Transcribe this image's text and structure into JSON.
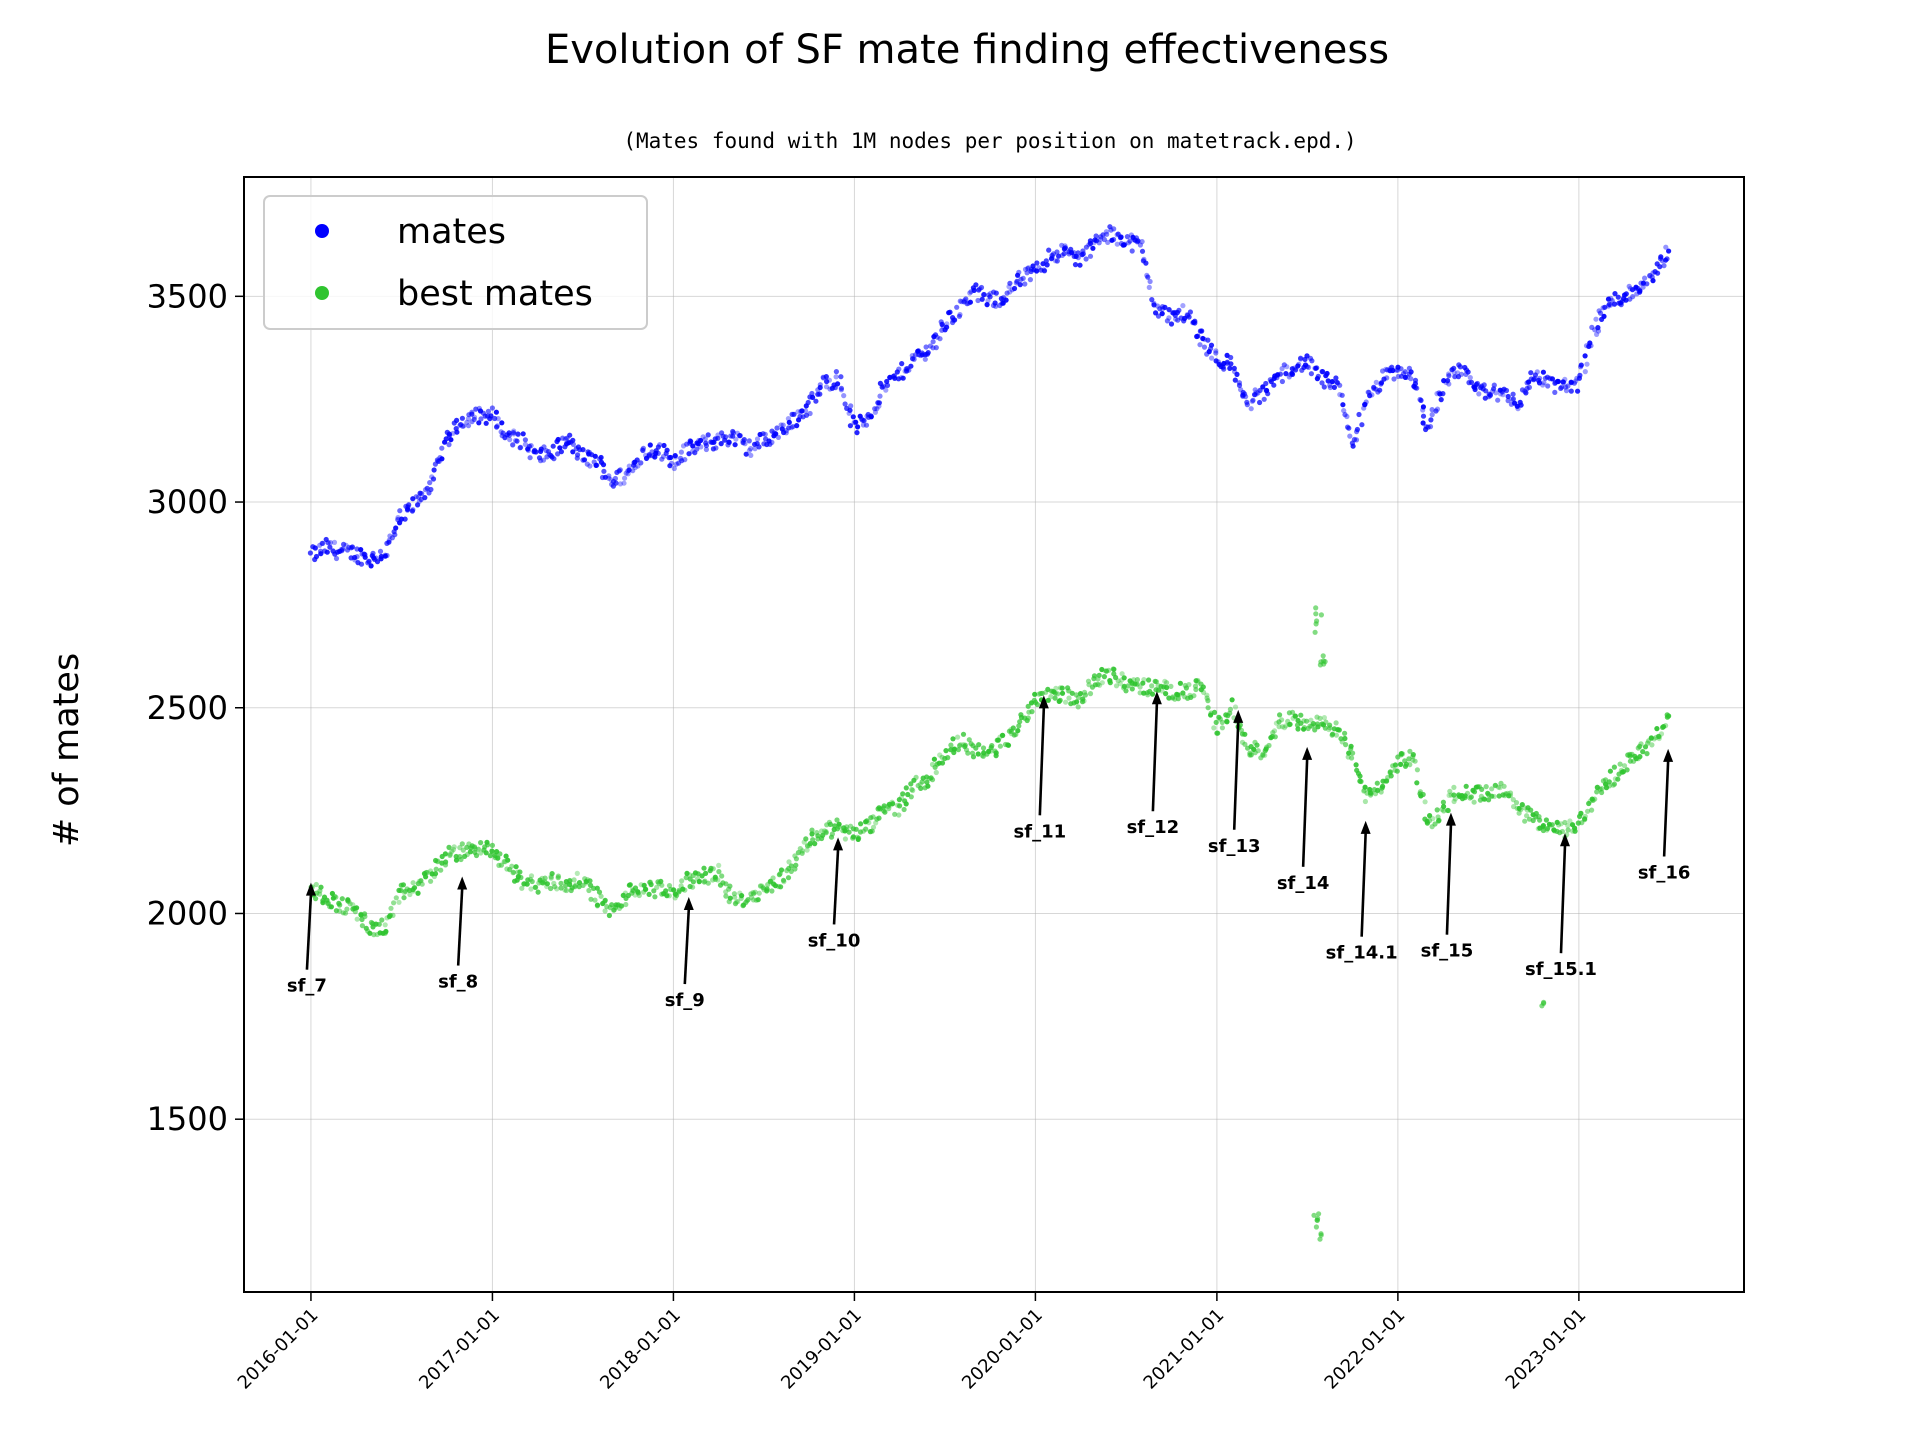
{
  "chart_data": {
    "type": "scatter",
    "title": "Evolution of SF mate finding effectiveness",
    "subtitle": "(Mates found with 1M nodes per position on matetrack.epd.)",
    "xlabel": "",
    "ylabel": "# of mates",
    "xlim": [
      "2015-08-19",
      "2023-11-30"
    ],
    "ylim": [
      1080,
      3790
    ],
    "x_ticks": [
      "2016-01-01",
      "2017-01-01",
      "2018-01-01",
      "2019-01-01",
      "2020-01-01",
      "2021-01-01",
      "2022-01-01",
      "2023-01-01"
    ],
    "y_ticks": [
      1500,
      2000,
      2500,
      3000,
      3500
    ],
    "grid": true,
    "legend_position": "upper-left",
    "series": [
      {
        "name": "mates",
        "color": "#0000ff",
        "points": [
          [
            "2016-01-01",
            2870
          ],
          [
            "2016-02-01",
            2890
          ],
          [
            "2016-03-01",
            2880
          ],
          [
            "2016-04-01",
            2875
          ],
          [
            "2016-05-01",
            2860
          ],
          [
            "2016-06-01",
            2880
          ],
          [
            "2016-07-01",
            2960
          ],
          [
            "2016-08-01",
            3000
          ],
          [
            "2016-09-01",
            3050
          ],
          [
            "2016-10-01",
            3150
          ],
          [
            "2016-11-01",
            3200
          ],
          [
            "2016-12-01",
            3210
          ],
          [
            "2017-01-01",
            3210
          ],
          [
            "2017-02-01",
            3160
          ],
          [
            "2017-03-01",
            3150
          ],
          [
            "2017-04-01",
            3110
          ],
          [
            "2017-05-01",
            3120
          ],
          [
            "2017-06-01",
            3150
          ],
          [
            "2017-07-01",
            3110
          ],
          [
            "2017-08-01",
            3100
          ],
          [
            "2017-09-01",
            3050
          ],
          [
            "2017-10-01",
            3070
          ],
          [
            "2017-11-01",
            3120
          ],
          [
            "2017-12-01",
            3130
          ],
          [
            "2018-01-01",
            3100
          ],
          [
            "2018-02-01",
            3130
          ],
          [
            "2018-03-01",
            3140
          ],
          [
            "2018-04-01",
            3150
          ],
          [
            "2018-05-01",
            3160
          ],
          [
            "2018-06-01",
            3130
          ],
          [
            "2018-07-01",
            3150
          ],
          [
            "2018-08-01",
            3170
          ],
          [
            "2018-09-01",
            3200
          ],
          [
            "2018-10-01",
            3230
          ],
          [
            "2018-11-01",
            3290
          ],
          [
            "2018-12-01",
            3300
          ],
          [
            "2019-01-01",
            3180
          ],
          [
            "2019-02-01",
            3210
          ],
          [
            "2019-03-01",
            3280
          ],
          [
            "2019-04-01",
            3310
          ],
          [
            "2019-05-01",
            3350
          ],
          [
            "2019-06-01",
            3370
          ],
          [
            "2019-07-01",
            3430
          ],
          [
            "2019-08-01",
            3470
          ],
          [
            "2019-09-01",
            3510
          ],
          [
            "2019-10-01",
            3490
          ],
          [
            "2019-11-01",
            3500
          ],
          [
            "2019-12-01",
            3540
          ],
          [
            "2020-01-01",
            3560
          ],
          [
            "2020-02-01",
            3600
          ],
          [
            "2020-03-01",
            3610
          ],
          [
            "2020-04-01",
            3590
          ],
          [
            "2020-05-01",
            3630
          ],
          [
            "2020-06-01",
            3650
          ],
          [
            "2020-07-01",
            3640
          ],
          [
            "2020-08-01",
            3620
          ],
          [
            "2020-09-01",
            3470
          ],
          [
            "2020-10-01",
            3450
          ],
          [
            "2020-11-01",
            3460
          ],
          [
            "2020-12-01",
            3400
          ],
          [
            "2021-01-01",
            3350
          ],
          [
            "2021-02-01",
            3330
          ],
          [
            "2021-03-01",
            3240
          ],
          [
            "2021-04-01",
            3260
          ],
          [
            "2021-05-01",
            3300
          ],
          [
            "2021-06-01",
            3330
          ],
          [
            "2021-07-01",
            3340
          ],
          [
            "2021-08-01",
            3300
          ],
          [
            "2021-09-01",
            3280
          ],
          [
            "2021-10-01",
            3140
          ],
          [
            "2021-11-01",
            3250
          ],
          [
            "2021-12-01",
            3300
          ],
          [
            "2022-01-01",
            3320
          ],
          [
            "2022-02-01",
            3300
          ],
          [
            "2022-03-01",
            3180
          ],
          [
            "2022-04-01",
            3280
          ],
          [
            "2022-05-01",
            3320
          ],
          [
            "2022-06-01",
            3290
          ],
          [
            "2022-07-01",
            3260
          ],
          [
            "2022-08-01",
            3270
          ],
          [
            "2022-09-01",
            3240
          ],
          [
            "2022-10-01",
            3310
          ],
          [
            "2022-11-01",
            3290
          ],
          [
            "2022-12-01",
            3280
          ],
          [
            "2023-01-01",
            3290
          ],
          [
            "2023-02-01",
            3420
          ],
          [
            "2023-03-01",
            3480
          ],
          [
            "2023-04-01",
            3500
          ],
          [
            "2023-05-01",
            3520
          ],
          [
            "2023-06-01",
            3560
          ],
          [
            "2023-07-01",
            3610
          ]
        ]
      },
      {
        "name": "best mates",
        "color": "#2fc42f",
        "points": [
          [
            "2016-01-01",
            2060
          ],
          [
            "2016-02-01",
            2040
          ],
          [
            "2016-03-01",
            2020
          ],
          [
            "2016-04-01",
            2010
          ],
          [
            "2016-05-01",
            1960
          ],
          [
            "2016-06-01",
            1970
          ],
          [
            "2016-07-01",
            2050
          ],
          [
            "2016-08-01",
            2060
          ],
          [
            "2016-09-01",
            2100
          ],
          [
            "2016-10-01",
            2140
          ],
          [
            "2016-11-01",
            2150
          ],
          [
            "2016-12-01",
            2160
          ],
          [
            "2017-01-01",
            2150
          ],
          [
            "2017-02-01",
            2120
          ],
          [
            "2017-03-01",
            2080
          ],
          [
            "2017-04-01",
            2070
          ],
          [
            "2017-05-01",
            2080
          ],
          [
            "2017-06-01",
            2070
          ],
          [
            "2017-07-01",
            2080
          ],
          [
            "2017-08-01",
            2040
          ],
          [
            "2017-09-01",
            2000
          ],
          [
            "2017-10-01",
            2050
          ],
          [
            "2017-11-01",
            2060
          ],
          [
            "2017-12-01",
            2060
          ],
          [
            "2018-01-01",
            2050
          ],
          [
            "2018-02-01",
            2080
          ],
          [
            "2018-03-01",
            2090
          ],
          [
            "2018-04-01",
            2100
          ],
          [
            "2018-05-01",
            2030
          ],
          [
            "2018-06-01",
            2040
          ],
          [
            "2018-07-01",
            2060
          ],
          [
            "2018-08-01",
            2080
          ],
          [
            "2018-09-01",
            2120
          ],
          [
            "2018-10-01",
            2180
          ],
          [
            "2018-11-01",
            2200
          ],
          [
            "2018-12-01",
            2210
          ],
          [
            "2019-01-01",
            2190
          ],
          [
            "2019-02-01",
            2210
          ],
          [
            "2019-03-01",
            2250
          ],
          [
            "2019-04-01",
            2260
          ],
          [
            "2019-05-01",
            2310
          ],
          [
            "2019-06-01",
            2330
          ],
          [
            "2019-07-01",
            2390
          ],
          [
            "2019-08-01",
            2420
          ],
          [
            "2019-09-01",
            2400
          ],
          [
            "2019-10-01",
            2390
          ],
          [
            "2019-11-01",
            2420
          ],
          [
            "2019-12-01",
            2460
          ],
          [
            "2020-01-01",
            2520
          ],
          [
            "2020-02-01",
            2540
          ],
          [
            "2020-03-01",
            2530
          ],
          [
            "2020-04-01",
            2520
          ],
          [
            "2020-05-01",
            2570
          ],
          [
            "2020-06-01",
            2580
          ],
          [
            "2020-07-01",
            2560
          ],
          [
            "2020-08-01",
            2550
          ],
          [
            "2020-09-01",
            2550
          ],
          [
            "2020-10-01",
            2540
          ],
          [
            "2020-11-01",
            2540
          ],
          [
            "2020-12-01",
            2550
          ],
          [
            "2021-01-01",
            2450
          ],
          [
            "2021-02-01",
            2500
          ],
          [
            "2021-03-01",
            2410
          ],
          [
            "2021-04-01",
            2390
          ],
          [
            "2021-05-01",
            2460
          ],
          [
            "2021-06-01",
            2480
          ],
          [
            "2021-07-01",
            2450
          ],
          [
            "2021-08-01",
            2460
          ],
          [
            "2021-09-01",
            2450
          ],
          [
            "2021-10-01",
            2380
          ],
          [
            "2021-11-01",
            2280
          ],
          [
            "2021-12-01",
            2310
          ],
          [
            "2022-01-01",
            2370
          ],
          [
            "2022-02-01",
            2380
          ],
          [
            "2022-03-01",
            2220
          ],
          [
            "2022-04-01",
            2250
          ],
          [
            "2022-05-01",
            2300
          ],
          [
            "2022-06-01",
            2290
          ],
          [
            "2022-07-01",
            2290
          ],
          [
            "2022-08-01",
            2300
          ],
          [
            "2022-09-01",
            2250
          ],
          [
            "2022-10-01",
            2230
          ],
          [
            "2022-11-01",
            2210
          ],
          [
            "2022-12-01",
            2200
          ],
          [
            "2023-01-01",
            2220
          ],
          [
            "2023-02-01",
            2280
          ],
          [
            "2023-03-01",
            2320
          ],
          [
            "2023-04-01",
            2360
          ],
          [
            "2023-05-01",
            2390
          ],
          [
            "2023-06-01",
            2420
          ],
          [
            "2023-07-01",
            2480
          ]
        ],
        "outliers": [
          [
            "2021-07-20",
            2700
          ],
          [
            "2021-07-25",
            2730
          ],
          [
            "2021-08-01",
            2600
          ],
          [
            "2021-08-03",
            2620
          ],
          [
            "2021-07-20",
            1260
          ],
          [
            "2021-07-25",
            1240
          ],
          [
            "2021-08-01",
            1220
          ],
          [
            "2022-10-20",
            1790
          ]
        ]
      }
    ],
    "annotations": [
      {
        "label": "sf_7",
        "date": "2016-01-01",
        "point_y": 2075,
        "text_y": 1810
      },
      {
        "label": "sf_8",
        "date": "2016-11-01",
        "point_y": 2090,
        "text_y": 1820
      },
      {
        "label": "sf_9",
        "date": "2018-02-01",
        "point_y": 2040,
        "text_y": 1775
      },
      {
        "label": "sf_10",
        "date": "2018-11-29",
        "point_y": 2185,
        "text_y": 1920
      },
      {
        "label": "sf_11",
        "date": "2020-01-18",
        "point_y": 2530,
        "text_y": 2185
      },
      {
        "label": "sf_12",
        "date": "2020-09-02",
        "point_y": 2540,
        "text_y": 2195
      },
      {
        "label": "sf_13",
        "date": "2021-02-13",
        "point_y": 2495,
        "text_y": 2150
      },
      {
        "label": "sf_14",
        "date": "2021-07-02",
        "point_y": 2405,
        "text_y": 2060
      },
      {
        "label": "sf_14.1",
        "date": "2021-10-28",
        "point_y": 2225,
        "text_y": 1890
      },
      {
        "label": "sf_15",
        "date": "2022-04-18",
        "point_y": 2245,
        "text_y": 1895
      },
      {
        "label": "sf_15.1",
        "date": "2022-12-04",
        "point_y": 2195,
        "text_y": 1850
      },
      {
        "label": "sf_16",
        "date": "2023-06-30",
        "point_y": 2400,
        "text_y": 2085
      }
    ]
  }
}
